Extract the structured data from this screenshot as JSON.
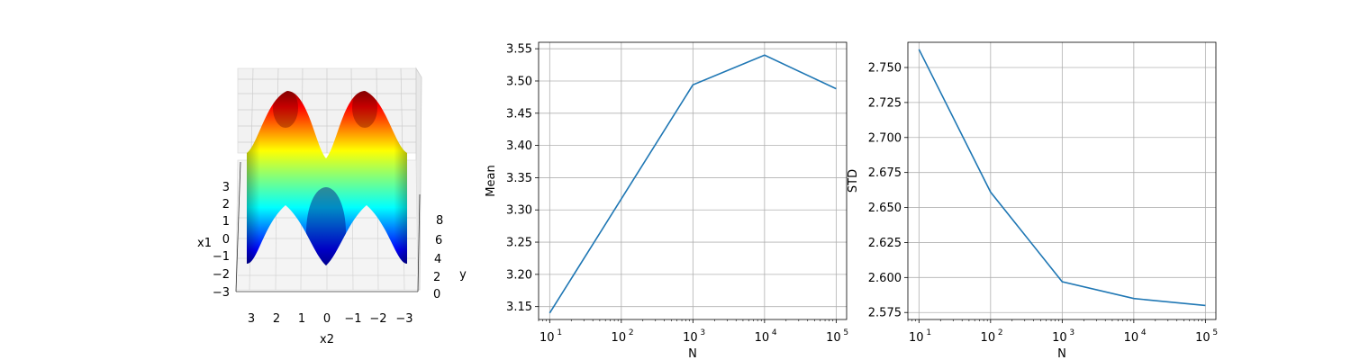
{
  "surface": {
    "xlabel": "x2",
    "ylabel": "y",
    "zlabel": "x1",
    "x2_ticks": [
      "3",
      "2",
      "1",
      "0",
      "−1",
      "−2",
      "−3"
    ],
    "y_ticks": [
      "0",
      "2",
      "4",
      "6",
      "8"
    ],
    "x1_ticks": [
      "−3",
      "−2",
      "−1",
      "0",
      "1",
      "2",
      "3"
    ],
    "colormap": "jet"
  },
  "chart_data": [
    {
      "type": "line",
      "title": "",
      "xlabel": "N",
      "ylabel": "Mean",
      "xscale": "log",
      "grid": true,
      "color": "#1f77b4",
      "x": [
        10,
        100,
        1000,
        10000,
        100000
      ],
      "values": [
        3.14,
        3.317,
        3.494,
        3.54,
        3.488
      ],
      "xlim": [
        7,
        140000
      ],
      "ylim": [
        3.13,
        3.56
      ],
      "xticks": [
        {
          "base": "10",
          "exp": "1"
        },
        {
          "base": "10",
          "exp": "2"
        },
        {
          "base": "10",
          "exp": "3"
        },
        {
          "base": "10",
          "exp": "4"
        },
        {
          "base": "10",
          "exp": "5"
        }
      ],
      "yticks": [
        {
          "v": 3.15,
          "label": "3.15"
        },
        {
          "v": 3.2,
          "label": "3.20"
        },
        {
          "v": 3.25,
          "label": "3.25"
        },
        {
          "v": 3.3,
          "label": "3.30"
        },
        {
          "v": 3.35,
          "label": "3.35"
        },
        {
          "v": 3.4,
          "label": "3.40"
        },
        {
          "v": 3.45,
          "label": "3.45"
        },
        {
          "v": 3.5,
          "label": "3.50"
        },
        {
          "v": 3.55,
          "label": "3.55"
        }
      ]
    },
    {
      "type": "line",
      "title": "",
      "xlabel": "N",
      "ylabel": "STD",
      "xscale": "log",
      "grid": true,
      "color": "#1f77b4",
      "x": [
        10,
        100,
        1000,
        10000,
        100000
      ],
      "values": [
        2.763,
        2.661,
        2.597,
        2.585,
        2.58
      ],
      "xlim": [
        7,
        140000
      ],
      "ylim": [
        2.57,
        2.768
      ],
      "xticks": [
        {
          "base": "10",
          "exp": "1"
        },
        {
          "base": "10",
          "exp": "2"
        },
        {
          "base": "10",
          "exp": "3"
        },
        {
          "base": "10",
          "exp": "4"
        },
        {
          "base": "10",
          "exp": "5"
        }
      ],
      "yticks": [
        {
          "v": 2.575,
          "label": "2.575"
        },
        {
          "v": 2.6,
          "label": "2.600"
        },
        {
          "v": 2.625,
          "label": "2.625"
        },
        {
          "v": 2.65,
          "label": "2.650"
        },
        {
          "v": 2.675,
          "label": "2.675"
        },
        {
          "v": 2.7,
          "label": "2.700"
        },
        {
          "v": 2.725,
          "label": "2.725"
        },
        {
          "v": 2.75,
          "label": "2.750"
        }
      ]
    }
  ]
}
